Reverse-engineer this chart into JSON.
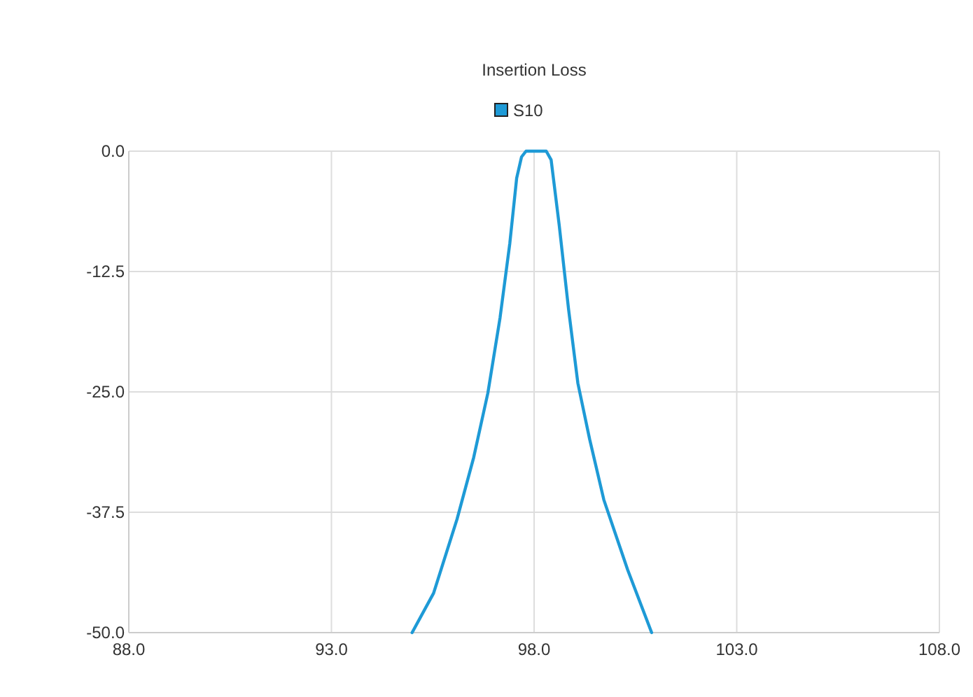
{
  "chart_data": {
    "type": "line",
    "title": "Insertion Loss",
    "series": [
      {
        "name": "S10",
        "color": "#1e9ad6",
        "x": [
          94.99,
          95.52,
          96.1,
          96.51,
          96.86,
          97.16,
          97.4,
          97.57,
          97.69,
          97.8,
          98.3,
          98.42,
          98.62,
          98.85,
          99.08,
          99.37,
          99.72,
          100.31,
          100.9
        ],
        "values": [
          -50,
          -45.9,
          -38.2,
          -31.8,
          -25.1,
          -17.3,
          -9.6,
          -2.8,
          -0.6,
          0,
          0,
          -0.9,
          -7.7,
          -16.4,
          -24.1,
          -29.9,
          -36.2,
          -43.5,
          -50
        ]
      }
    ],
    "xlim": [
      88,
      108
    ],
    "xticks": [
      {
        "value": 88,
        "label": "88.0"
      },
      {
        "value": 93,
        "label": "93.0"
      },
      {
        "value": 98,
        "label": "98.0"
      },
      {
        "value": 103,
        "label": "103.0"
      },
      {
        "value": 108,
        "label": "108.0"
      }
    ],
    "ylim": [
      -50,
      0
    ],
    "yticks": [
      {
        "value": 0,
        "label": "0.0"
      },
      {
        "value": -12.5,
        "label": "-12.5"
      },
      {
        "value": -25,
        "label": "-25.0"
      },
      {
        "value": -37.5,
        "label": "-37.5"
      },
      {
        "value": -50,
        "label": "-50.0"
      }
    ],
    "grid": true,
    "legend": "top",
    "marker": "none",
    "line_style": "solid"
  }
}
